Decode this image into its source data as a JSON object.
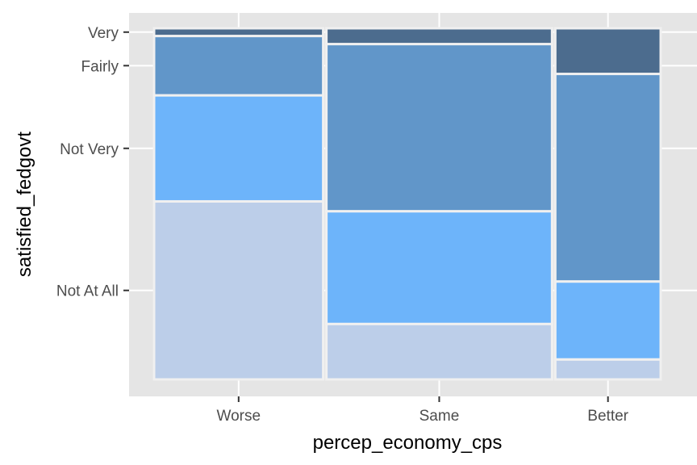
{
  "chart_data": {
    "type": "mosaic",
    "title": "",
    "xlabel": "percep_economy_cps",
    "ylabel": "satisfied_fedgovt",
    "categories": [
      "Worse",
      "Same",
      "Better"
    ],
    "column_proportions": [
      0.332,
      0.443,
      0.207
    ],
    "y_levels": [
      "Not At All",
      "Not Very",
      "Fairly",
      "Very"
    ],
    "series": [
      {
        "name": "Not At All",
        "values": [
          0.507,
          0.158,
          0.057
        ]
      },
      {
        "name": "Not Very",
        "values": [
          0.302,
          0.321,
          0.222
        ]
      },
      {
        "name": "Fairly",
        "values": [
          0.169,
          0.476,
          0.591
        ]
      },
      {
        "name": "Very",
        "values": [
          0.022,
          0.045,
          0.13
        ]
      }
    ],
    "colors": [
      "#bccee9",
      "#6db4fa",
      "#6196c9",
      "#4c6c8e"
    ],
    "grid": true,
    "legend": "none"
  }
}
